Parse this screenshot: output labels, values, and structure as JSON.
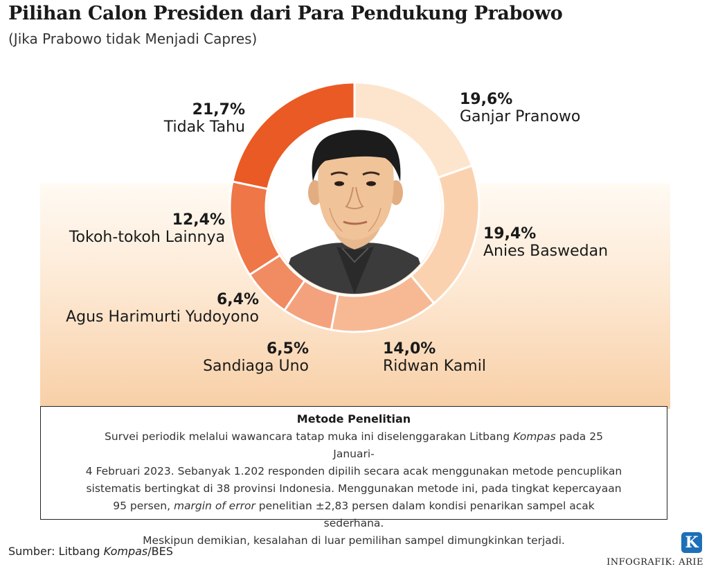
{
  "header": {
    "title": "Pilihan Calon Presiden dari Para Pendukung Prabowo",
    "subtitle": "(Jika Prabowo tidak Menjadi Capres)"
  },
  "chart_data": {
    "type": "pie",
    "title": "Pilihan Calon Presiden dari Para Pendukung Prabowo",
    "subtitle": "(Jika Prabowo tidak Menjadi Capres)",
    "unit": "%",
    "slices": [
      {
        "name": "Ganjar Pranowo",
        "value": 19.6,
        "label": "19,6%",
        "color": "#fde5cd"
      },
      {
        "name": "Anies Baswedan",
        "value": 19.4,
        "label": "19,4%",
        "color": "#fbd2b0"
      },
      {
        "name": "Ridwan Kamil",
        "value": 14.0,
        "label": "14,0%",
        "color": "#f7b994"
      },
      {
        "name": "Sandiaga Uno",
        "value": 6.5,
        "label": "6,5%",
        "color": "#f4a27d"
      },
      {
        "name": "Agus Harimurti Yudoyono",
        "value": 6.4,
        "label": "6,4%",
        "color": "#f18b62"
      },
      {
        "name": "Tokoh-tokoh Lainnya",
        "value": 12.4,
        "label": "12,4%",
        "color": "#ee7647"
      },
      {
        "name": "Tidak Tahu",
        "value": 21.7,
        "label": "21,7%",
        "color": "#ea5a24"
      }
    ]
  },
  "method": {
    "title": "Metode Penelitian",
    "line1_pre": "Survei periodik melalui wawancara tatap muka ini diselenggarakan Litbang ",
    "line1_italic": "Kompas",
    "line1_post": " pada 25 Januari-",
    "line2": "4 Februari 2023. Sebanyak 1.202 responden dipilih secara acak menggunakan metode pencuplikan",
    "line3": "sistematis bertingkat di 38 provinsi Indonesia. Menggunakan metode ini, pada tingkat kepercayaan",
    "line4_pre": "95 persen, ",
    "line4_italic": "margin of error",
    "line4_post": " penelitian ±2,83 persen dalam kondisi penarikan sampel acak sederhana.",
    "line5": "Meskipun demikian, kesalahan di luar pemilihan sampel dimungkinkan terjadi."
  },
  "footer": {
    "source_pre": "Sumber: Litbang ",
    "source_italic": "Kompas",
    "source_post": "/BES",
    "logo_letter": "K",
    "credit": "INFOGRAFIK: ARIE"
  }
}
